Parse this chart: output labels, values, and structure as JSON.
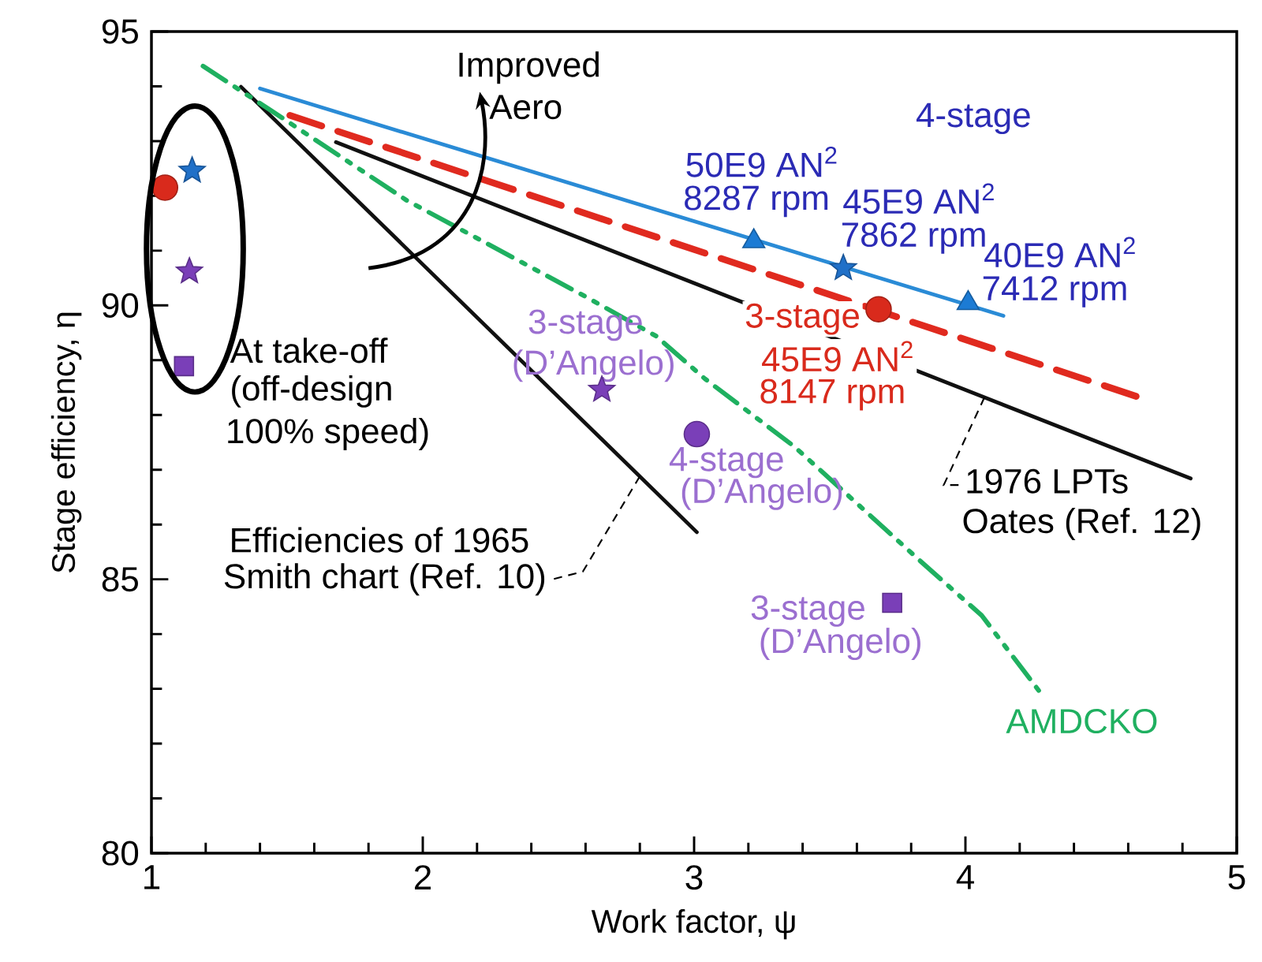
{
  "chart_data": {
    "type": "line",
    "xlabel": "Work factor, ψ",
    "ylabel": "Stage efficiency, η",
    "xlim": [
      1,
      5
    ],
    "ylim": [
      80,
      95
    ],
    "xticks": [
      1,
      2,
      3,
      4,
      5
    ],
    "yticks": [
      80,
      85,
      90,
      95
    ],
    "series": [
      {
        "color": "#2a8bd6",
        "line_style": "solid",
        "x": [
          1.4,
          4.14
        ],
        "values": [
          93.96,
          89.81
        ]
      },
      {
        "color": "#e02a1f",
        "line_style": "dashed",
        "x": [
          1.51,
          4.66
        ],
        "values": [
          93.47,
          88.29
        ]
      },
      {
        "color": "#111111",
        "line_style": "solid",
        "x": [
          1.33,
          3.01
        ],
        "values": [
          93.99,
          85.86
        ]
      },
      {
        "color": "#111111",
        "line_style": "solid",
        "x": [
          1.68,
          4.83
        ],
        "values": [
          92.98,
          86.84
        ]
      },
      {
        "color": "#1fb060",
        "line_style": "dashdot",
        "x": [
          1.19,
          1.44,
          1.94,
          2.6,
          2.86,
          3.04,
          3.37,
          3.83,
          4.06,
          4.29
        ],
        "values": [
          94.37,
          93.56,
          91.92,
          90.16,
          89.44,
          88.66,
          87.42,
          85.35,
          84.34,
          82.84
        ]
      },
      {
        "type": "scatter",
        "color": "#1c7bd4",
        "marker": "triangle",
        "x": [
          3.22,
          4.01
        ],
        "values": [
          91.17,
          90.04
        ]
      },
      {
        "type": "scatter",
        "color": "#2070c8",
        "marker": "star",
        "x": [
          1.15,
          3.55
        ],
        "values": [
          92.46,
          90.68
        ]
      },
      {
        "type": "scatter",
        "color": "#d92a1c",
        "marker": "circle",
        "x": [
          1.05,
          3.68
        ],
        "values": [
          92.15,
          89.93
        ]
      },
      {
        "type": "scatter",
        "color": "#7a3fb8",
        "marker": "star",
        "x": [
          1.14,
          2.66
        ],
        "values": [
          90.62,
          88.46
        ]
      },
      {
        "type": "scatter",
        "color": "#7a3fb8",
        "marker": "circle",
        "x": [
          3.01
        ],
        "values": [
          87.65
        ]
      },
      {
        "type": "scatter",
        "color": "#7a3fb8",
        "marker": "square",
        "x": [
          1.12,
          3.73
        ],
        "values": [
          88.89,
          84.57
        ]
      }
    ],
    "annotations": [
      "Improved",
      "Aero",
      "4-stage",
      "50E9 AN$^{2}$",
      "8287 rpm",
      "45E9 AN$^{2}$",
      "7862 rpm",
      "40E9 AN$^{2}$",
      "7412 rpm",
      "3-stage",
      "45E9 AN$^{2}$",
      "8147 rpm",
      "3-stage",
      "(D’Angelo)",
      "4-stage",
      "(D’Angelo)",
      "3-stage",
      "(D’Angelo)",
      "At take-off",
      "(off-design",
      "100% speed)",
      "Efficiencies of 1965",
      {
        "text": "Smith chart (Ref. 10)",
        "x": 2.8,
        "y": 86.88
      },
      {
        "text": "1976 LPTs",
        "x": 4.07,
        "y": 88.32
      },
      "Oates (Ref. 12)",
      "AMDCKO"
    ]
  }
}
